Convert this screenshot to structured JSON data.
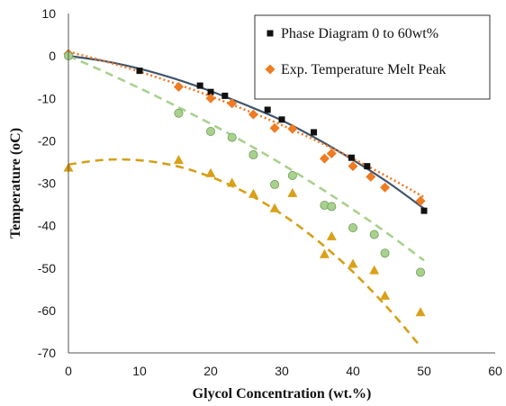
{
  "chart_data": {
    "type": "scatter",
    "xlabel": "Glycol Concentration (wt.%)",
    "ylabel": "Temperature (oC)",
    "xlim": [
      0,
      60
    ],
    "ylim": [
      -70,
      10
    ],
    "xticks": [
      0,
      10,
      20,
      30,
      40,
      50,
      60
    ],
    "yticks": [
      10,
      0,
      -10,
      -20,
      -30,
      -40,
      -50,
      -60,
      -70
    ],
    "grid": false,
    "legend_position": "top-right",
    "series": [
      {
        "name": "Phase Diagram 0 to 60wt%",
        "marker": "square",
        "color": "#111111",
        "x": [
          0,
          10,
          18.5,
          20,
          22,
          28,
          30,
          34.5,
          39.8,
          42,
          50
        ],
        "y": [
          0,
          -3.5,
          -7,
          -8.5,
          -9.4,
          -12.7,
          -15,
          -18,
          -24,
          -26,
          -36.5
        ],
        "fit": {
          "style": "solid",
          "color": "#3f556e",
          "x": [
            0,
            5,
            10,
            15,
            20,
            25,
            30,
            35,
            40,
            45,
            50
          ],
          "y": [
            0,
            -1.2,
            -3,
            -5.4,
            -8.3,
            -11.6,
            -15.2,
            -19.6,
            -24.5,
            -29.9,
            -36
          ]
        }
      },
      {
        "name": "Exp. Temperature Melt Peak",
        "marker": "diamond",
        "color": "#ef7b22",
        "x": [
          0,
          15.5,
          20,
          23,
          26,
          29,
          31.5,
          36,
          37,
          40,
          42.5,
          44.5,
          49.5
        ],
        "y": [
          0.5,
          -7.3,
          -10,
          -11.2,
          -13.8,
          -17,
          -17.2,
          -24.2,
          -23,
          -26,
          -28.5,
          -31,
          -34.2
        ],
        "fit": {
          "style": "dotted",
          "color": "#ef7b22",
          "x": [
            0,
            5,
            10,
            15,
            20,
            25,
            30,
            35,
            40,
            45,
            50
          ],
          "y": [
            1,
            -1.2,
            -3.7,
            -6.5,
            -9.5,
            -12.8,
            -16.3,
            -20.1,
            -24.2,
            -28.6,
            -33.3
          ]
        }
      },
      {
        "name": "",
        "marker": "circle",
        "color": "#a9d18e",
        "x": [
          0,
          15.5,
          20,
          23,
          26,
          29,
          31.5,
          36,
          37,
          40,
          43,
          44.5,
          49.5
        ],
        "y": [
          0,
          -13.5,
          -17.8,
          -19.2,
          -23.3,
          -30.3,
          -28.2,
          -35.2,
          -35.5,
          -40.5,
          -42.1,
          -46.5,
          -51
        ],
        "fit": {
          "style": "dashed",
          "color": "#a9d18e",
          "x": [
            0,
            5,
            10,
            15,
            20,
            25,
            30,
            35,
            40,
            45,
            50
          ],
          "y": [
            0,
            -3.7,
            -7.6,
            -11.7,
            -16,
            -20.6,
            -25.5,
            -30.7,
            -36.2,
            -42,
            -48.2
          ]
        }
      },
      {
        "name": "",
        "marker": "triangle",
        "color": "#d9a018",
        "x": [
          0,
          15.5,
          20,
          23,
          26,
          29,
          31.5,
          36,
          37,
          40,
          43,
          44.5,
          49.5
        ],
        "y": [
          -26.3,
          -24.5,
          -27.6,
          -29.9,
          -32.5,
          -35.9,
          -32.3,
          -46.7,
          -42.5,
          -49,
          -50.5,
          -56.5,
          -60.4
        ],
        "fit": {
          "style": "dashed",
          "color": "#d4a017",
          "x": [
            0,
            5,
            10,
            15,
            20,
            25,
            30,
            35,
            40,
            45,
            50
          ],
          "y": [
            -25.6,
            -24.5,
            -24.6,
            -25.9,
            -28.5,
            -32.3,
            -37.3,
            -43.5,
            -50.9,
            -59.6,
            -69.5
          ],
          "xmax": 49.5
        }
      }
    ]
  }
}
